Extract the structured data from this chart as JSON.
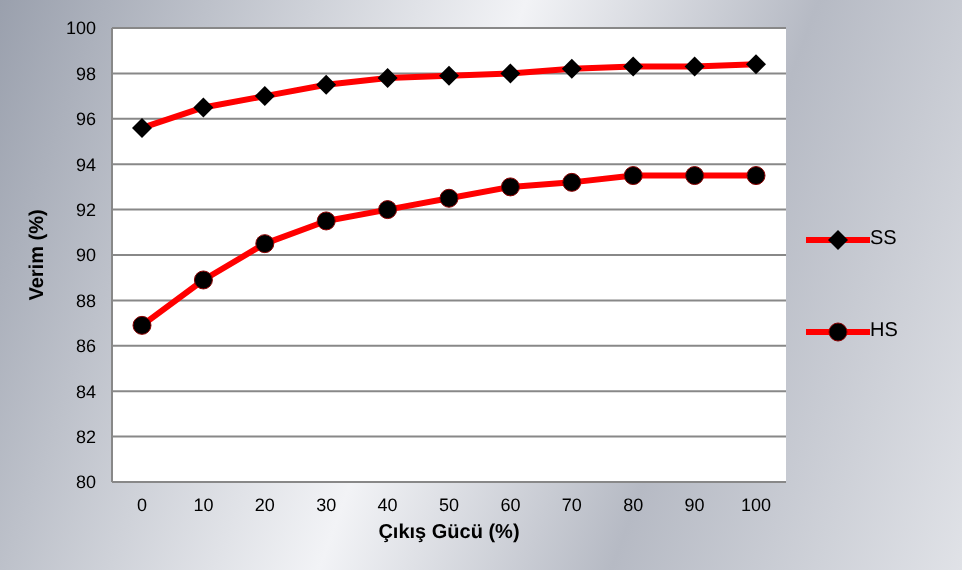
{
  "chart_data": {
    "type": "line",
    "xlabel": "Çıkış Gücü (%)",
    "ylabel": "Verim (%)",
    "categories": [
      "0",
      "10",
      "20",
      "30",
      "40",
      "50",
      "60",
      "70",
      "80",
      "90",
      "100"
    ],
    "series": [
      {
        "name": "SS",
        "color": "#ff0000",
        "marker": "diamond",
        "values": [
          95.6,
          96.5,
          97.0,
          97.5,
          97.8,
          97.9,
          98.0,
          98.2,
          98.3,
          98.3,
          98.4
        ]
      },
      {
        "name": "HS",
        "color": "#ff0000",
        "marker": "circle",
        "values": [
          86.9,
          88.9,
          90.5,
          91.5,
          92.0,
          92.5,
          93.0,
          93.2,
          93.5,
          93.5,
          93.5
        ]
      }
    ],
    "ylim": [
      80,
      100
    ],
    "yticks": [
      80,
      82,
      84,
      86,
      88,
      90,
      92,
      94,
      96,
      98,
      100
    ],
    "grid": "y",
    "legend": "right"
  }
}
